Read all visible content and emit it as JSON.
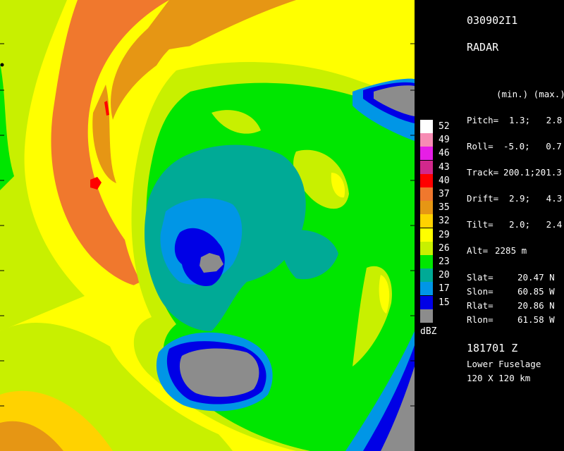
{
  "header": {
    "image_id": "030902I1",
    "product": "RADAR"
  },
  "stats": {
    "minmax_label": "(min.) (max.)",
    "rows": [
      {
        "label": "Pitch=",
        "value": "1.3;   2.8"
      },
      {
        "label": "Roll=",
        "value": "-5.0;   0.7"
      },
      {
        "label": "Track=",
        "value": "200.1;201.3"
      },
      {
        "label": "Drift=",
        "value": "2.9;   4.3"
      },
      {
        "label": "Tilt=",
        "value": "2.0;   2.4"
      }
    ],
    "altitude": {
      "label": "Alt=",
      "value": "2285 m"
    }
  },
  "position": [
    {
      "label": "Slat=",
      "value": "20.47 N"
    },
    {
      "label": "Slon=",
      "value": "60.85 W"
    },
    {
      "label": "Rlat=",
      "value": "20.86 N"
    },
    {
      "label": "Rlon=",
      "value": "61.58 W"
    }
  ],
  "footer": {
    "time": "181701 Z",
    "sensor": "Lower Fuselage",
    "extent": "120 X 120 km"
  },
  "color_scale": {
    "unit": "dBZ",
    "levels": [
      {
        "value": "52",
        "color": "#ffffff"
      },
      {
        "value": "49",
        "color": "#f78cb4"
      },
      {
        "value": "46",
        "color": "#e61ee6"
      },
      {
        "value": "43",
        "color": "#d2288c"
      },
      {
        "value": "40",
        "color": "#ff0000"
      },
      {
        "value": "37",
        "color": "#f0782d"
      },
      {
        "value": "35",
        "color": "#e69614"
      },
      {
        "value": "32",
        "color": "#ffd200"
      },
      {
        "value": "29",
        "color": "#ffff00"
      },
      {
        "value": "26",
        "color": "#c8f000"
      },
      {
        "value": "23",
        "color": "#00e600"
      },
      {
        "value": "20",
        "color": "#00aa96"
      },
      {
        "value": "17",
        "color": "#0096e6"
      },
      {
        "value": "15",
        "color": "#0000e6"
      },
      {
        "value": "",
        "color": "#8c8c8c"
      }
    ]
  }
}
